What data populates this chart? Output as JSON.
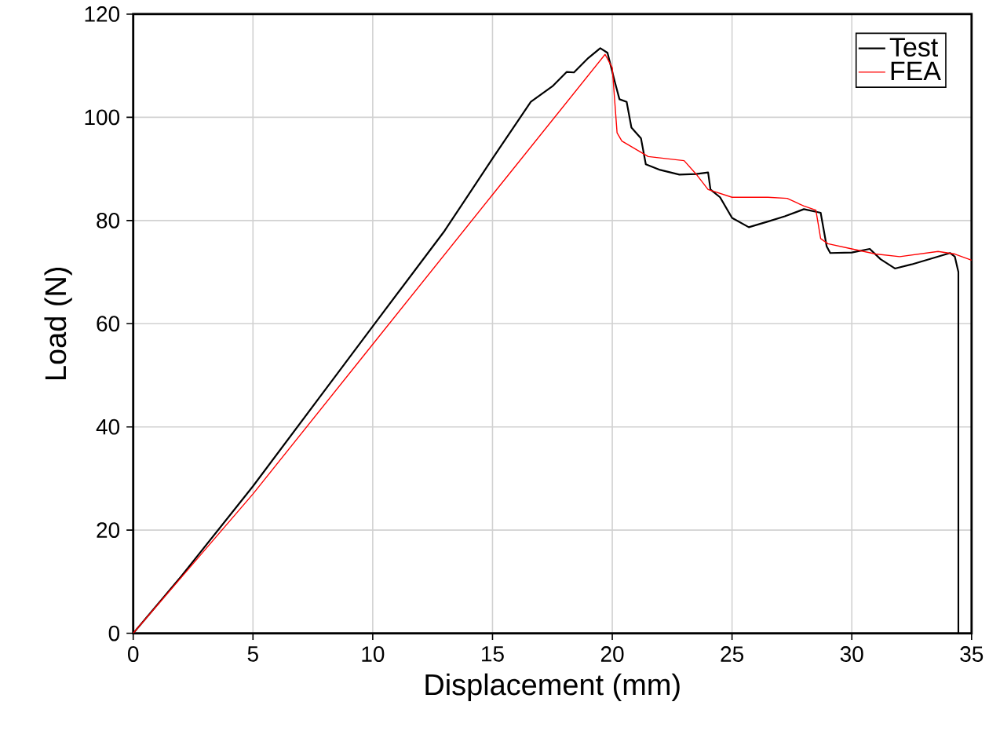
{
  "chart_data": {
    "type": "line",
    "xlabel": "Displacement (mm)",
    "ylabel": "Load (N)",
    "xlim": [
      0,
      35
    ],
    "ylim": [
      0,
      120
    ],
    "xticks": [
      0,
      5,
      10,
      15,
      20,
      25,
      30,
      35
    ],
    "yticks": [
      0,
      20,
      40,
      60,
      80,
      100,
      120
    ],
    "grid": true,
    "legend": "top right",
    "series": [
      {
        "name": "Test",
        "color": "#000000",
        "x": [
          0,
          2,
          5,
          10,
          13,
          15,
          16.6,
          17.5,
          18.1,
          18.4,
          19,
          19.5,
          19.8,
          20.1,
          20.3,
          20.6,
          20.8,
          21.2,
          21.4,
          22.0,
          22.8,
          23.5,
          24.0,
          24.1,
          24.5,
          25.0,
          25.7,
          26.5,
          27.2,
          28.0,
          28.7,
          28.95,
          29.1,
          30.0,
          30.75,
          31.2,
          31.8,
          32.5,
          33.3,
          34.1,
          34.3,
          34.45,
          34.45
        ],
        "values": [
          0,
          11,
          28.5,
          59.5,
          78,
          92,
          103,
          106,
          108.8,
          108.7,
          111.5,
          113.4,
          112.5,
          107,
          103.5,
          103,
          98,
          95.9,
          90.9,
          89.8,
          88.9,
          89,
          89.3,
          86,
          84.5,
          80.5,
          78.7,
          79.8,
          80.8,
          82.2,
          81.5,
          75,
          73.7,
          73.8,
          74.5,
          72.5,
          70.7,
          71.5,
          72.6,
          73.7,
          73,
          70,
          0
        ]
      },
      {
        "name": "FEA",
        "color": "#ff0000",
        "x": [
          0,
          5,
          10,
          15,
          19.7,
          20.0,
          20.2,
          20.4,
          21.5,
          23.0,
          23.5,
          24.0,
          25.0,
          26.5,
          27.3,
          28.0,
          28.5,
          28.7,
          29.0,
          30.0,
          31.0,
          32.0,
          33.6,
          34.3,
          35
        ],
        "values": [
          0,
          27,
          56,
          85,
          112.2,
          109.6,
          97,
          95.4,
          92.4,
          91.6,
          89,
          86,
          84.5,
          84.5,
          84.3,
          82.8,
          82,
          76.5,
          75.5,
          74.5,
          73.5,
          73,
          74,
          73.5,
          72.3
        ]
      }
    ]
  }
}
